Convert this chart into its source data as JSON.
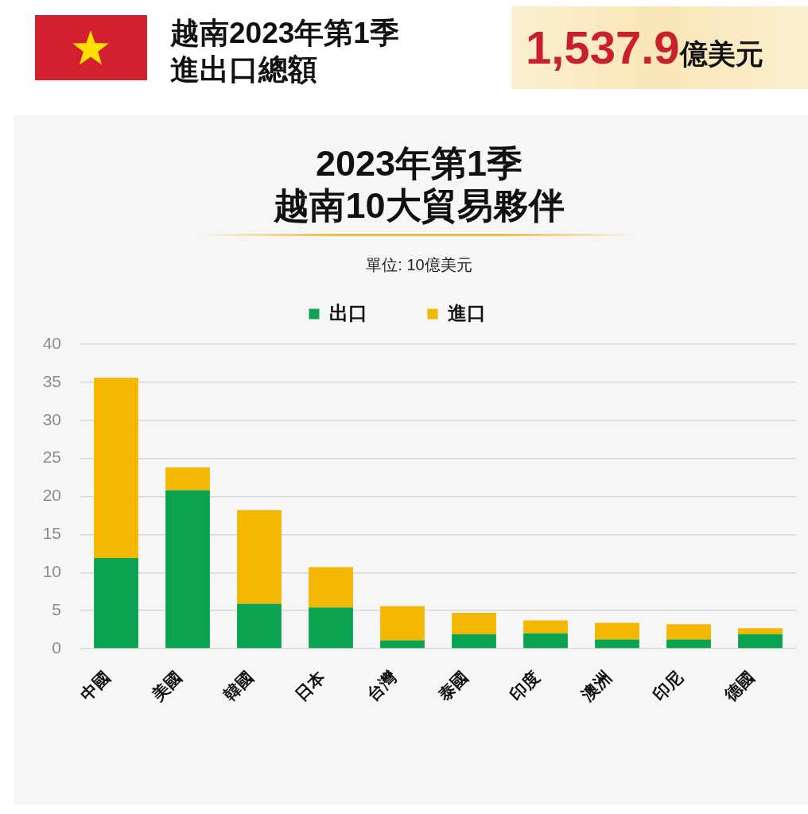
{
  "chart_data": {
    "type": "bar",
    "title": "2023年第1季",
    "subtitle": "越南10大貿易夥伴",
    "annotations": [
      "越南2023年第1季",
      "進出口總額",
      "1,537.9億美元",
      "單位: 10億美元"
    ],
    "categories": [
      "中國",
      "美國",
      "韓國",
      "日本",
      "台灣",
      "泰國",
      "印度",
      "澳洲",
      "印尼",
      "德國"
    ],
    "series": [
      {
        "name": "出口",
        "color": "#0aa34f",
        "values": [
          11.9,
          20.8,
          5.9,
          5.4,
          1.1,
          1.9,
          2.0,
          1.2,
          1.2,
          1.9
        ]
      },
      {
        "name": "進口",
        "color": "#f5b800",
        "values": [
          23.7,
          3.0,
          12.3,
          5.3,
          4.5,
          2.8,
          1.7,
          2.2,
          2.0,
          0.8
        ]
      }
    ],
    "stacked": true,
    "ylim": [
      0,
      40
    ],
    "yticks": [
      0,
      5,
      10,
      15,
      20,
      25,
      30,
      35,
      40
    ],
    "grid": "y",
    "legend": "top"
  }
}
